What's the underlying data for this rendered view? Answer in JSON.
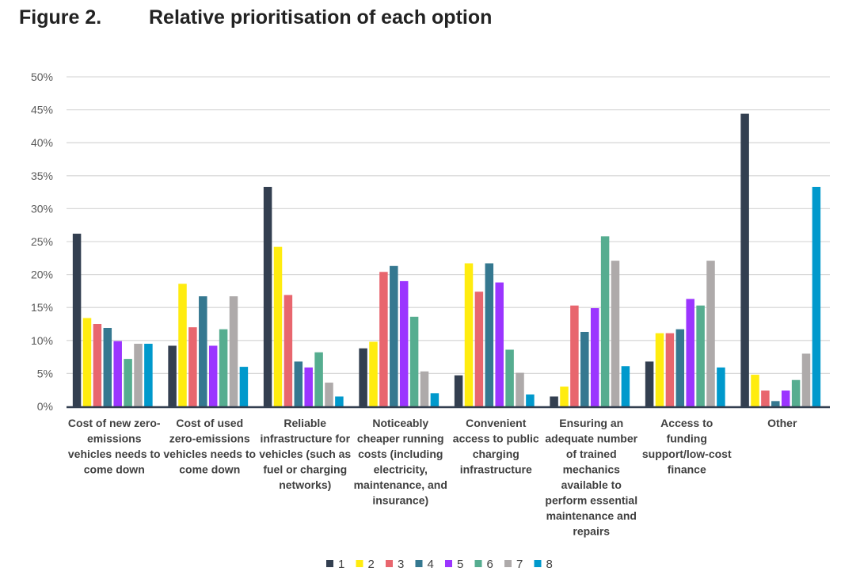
{
  "figure": {
    "number": "Figure 2.",
    "title": "Relative prioritisation of each option"
  },
  "chart_data": {
    "type": "bar",
    "title": "Relative prioritisation of each option",
    "xlabel": "",
    "ylabel": "",
    "ylim": [
      0,
      50
    ],
    "yticks": [
      "0%",
      "5%",
      "10%",
      "15%",
      "20%",
      "25%",
      "30%",
      "35%",
      "40%",
      "45%",
      "50%"
    ],
    "grid": true,
    "legend_position": "bottom",
    "categories": [
      "Cost of new zero-emissions vehicles needs to come down",
      "Cost of used zero-emissions vehicles needs to come down",
      "Reliable infrastructure for vehicles (such as fuel or charging networks)",
      "Noticeably cheaper running costs (including electricity, maintenance, and insurance)",
      "Convenient access to public charging infrastructure",
      "Ensuring an adequate number of trained mechanics available to perform essential maintenance and repairs",
      "Access to funding support/low-cost finance",
      "Other"
    ],
    "category_lines": [
      [
        "Cost of new zero-",
        "emissions",
        "vehicles needs to",
        "come down"
      ],
      [
        "Cost of used",
        "zero-emissions",
        "vehicles needs to",
        "come down"
      ],
      [
        "Reliable",
        "infrastructure for",
        "vehicles (such as",
        "fuel or charging",
        "networks)"
      ],
      [
        "Noticeably",
        "cheaper running",
        "costs (including",
        "electricity,",
        "maintenance, and",
        "insurance)"
      ],
      [
        "Convenient",
        "access to public",
        "charging",
        "infrastructure"
      ],
      [
        "Ensuring an",
        "adequate number",
        "of trained",
        "mechanics",
        "available to",
        "perform essential",
        "maintenance and",
        "repairs"
      ],
      [
        "Access to",
        "funding",
        "support/low-cost",
        "finance"
      ],
      [
        "Other"
      ]
    ],
    "series": [
      {
        "name": "1",
        "color": "#333f50",
        "values": [
          26.2,
          9.2,
          33.3,
          8.8,
          4.7,
          1.5,
          6.8,
          44.4
        ]
      },
      {
        "name": "2",
        "color": "#ffec0f",
        "values": [
          13.4,
          18.6,
          24.2,
          9.8,
          21.7,
          3.0,
          11.1,
          4.8
        ]
      },
      {
        "name": "3",
        "color": "#e8666e",
        "values": [
          12.5,
          12.0,
          16.9,
          20.4,
          17.4,
          15.3,
          11.1,
          2.4
        ]
      },
      {
        "name": "4",
        "color": "#357890",
        "values": [
          11.9,
          16.7,
          6.8,
          21.3,
          21.7,
          11.3,
          11.7,
          0.8
        ]
      },
      {
        "name": "5",
        "color": "#9b35ff",
        "values": [
          9.9,
          9.2,
          5.9,
          19.0,
          18.8,
          14.9,
          16.3,
          2.4
        ]
      },
      {
        "name": "6",
        "color": "#56ad90",
        "values": [
          7.2,
          11.7,
          8.2,
          13.6,
          8.6,
          25.8,
          15.3,
          4.0
        ]
      },
      {
        "name": "7",
        "color": "#aeaaaa",
        "values": [
          9.5,
          16.7,
          3.6,
          5.3,
          5.1,
          22.1,
          22.1,
          8.0
        ]
      },
      {
        "name": "8",
        "color": "#0099cc",
        "values": [
          9.5,
          6.0,
          1.5,
          2.0,
          1.8,
          6.1,
          5.9,
          33.3
        ]
      }
    ]
  }
}
